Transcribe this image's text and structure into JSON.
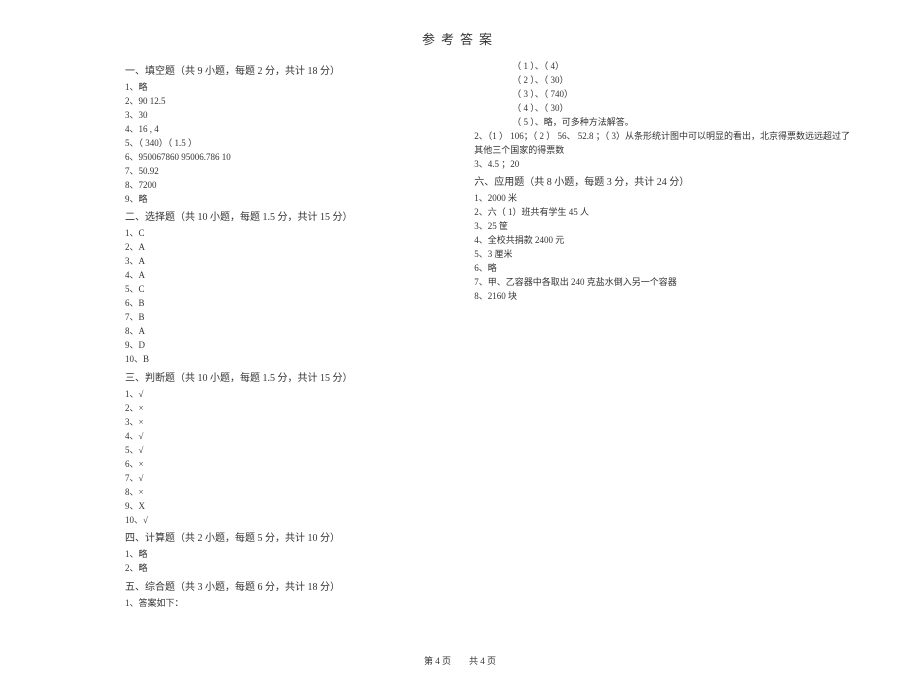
{
  "title": "参考答案",
  "footer": "第 4 页　　共 4 页",
  "s1": {
    "head": "一、填空题（共  9 小题，每题  2 分，共计 18 分）",
    "i": [
      "1、略",
      "2、90  12.5",
      "3、30",
      "4、16 , 4",
      "5、（ 340）（ 1.5 ）",
      "6、950067860  95006.786    10",
      "7、50.92",
      "8、7200",
      "9、略"
    ]
  },
  "s2": {
    "head": "二、选择题（共  10 小题，每题  1.5  分，共计 15 分）",
    "i": [
      "1、C",
      "2、A",
      "3、A",
      "4、A",
      "5、C",
      "6、B",
      "7、B",
      "8、A",
      "9、D",
      "10、B"
    ]
  },
  "s3": {
    "head": "三、判断题（共  10 小题，每题  1.5  分，共计 15 分）",
    "i": [
      "1、√",
      "2、×",
      "3、×",
      "4、√",
      "5、√",
      "6、×",
      "7、√",
      "8、×",
      "9、X",
      "10、√"
    ]
  },
  "s4": {
    "head": "四、计算题（共  2 小题，每题  5 分，共计 10 分）",
    "i": [
      "1、略",
      "2、略"
    ]
  },
  "s5": {
    "head": "五、综合题（共  3 小题，每题  6 分，共计 18 分）",
    "i1": "1、答案如下：",
    "sub": [
      "（ 1 ）、（ 4）",
      "（ 2 ）、（ 30）",
      "（ 3 ）、（ 740）",
      "（ 4 ）、（ 30）",
      "（ 5 ）、略，可多种方法解答。"
    ],
    "i2": "2、（1 ） 106；（ 2 ） 56、 52.8 ；（ 3）从条形统计图中可以明显的看出，北京得票数远远超过了",
    "i2b": "其他三个国家的得票数",
    "i3": "3、4.5 ；20"
  },
  "s6": {
    "head": "六、应用题（共  8 小题，每题  3 分，共计 24 分）",
    "i": [
      "1、2000 米",
      "2、六（ 1）班共有学生   45 人",
      "3、25 筐",
      "4、全校共捐款   2400 元",
      "5、3 厘米",
      "6、略",
      "7、甲、乙容器中各取出    240 克盐水倒入另一个容器",
      "8、2160 块"
    ]
  }
}
